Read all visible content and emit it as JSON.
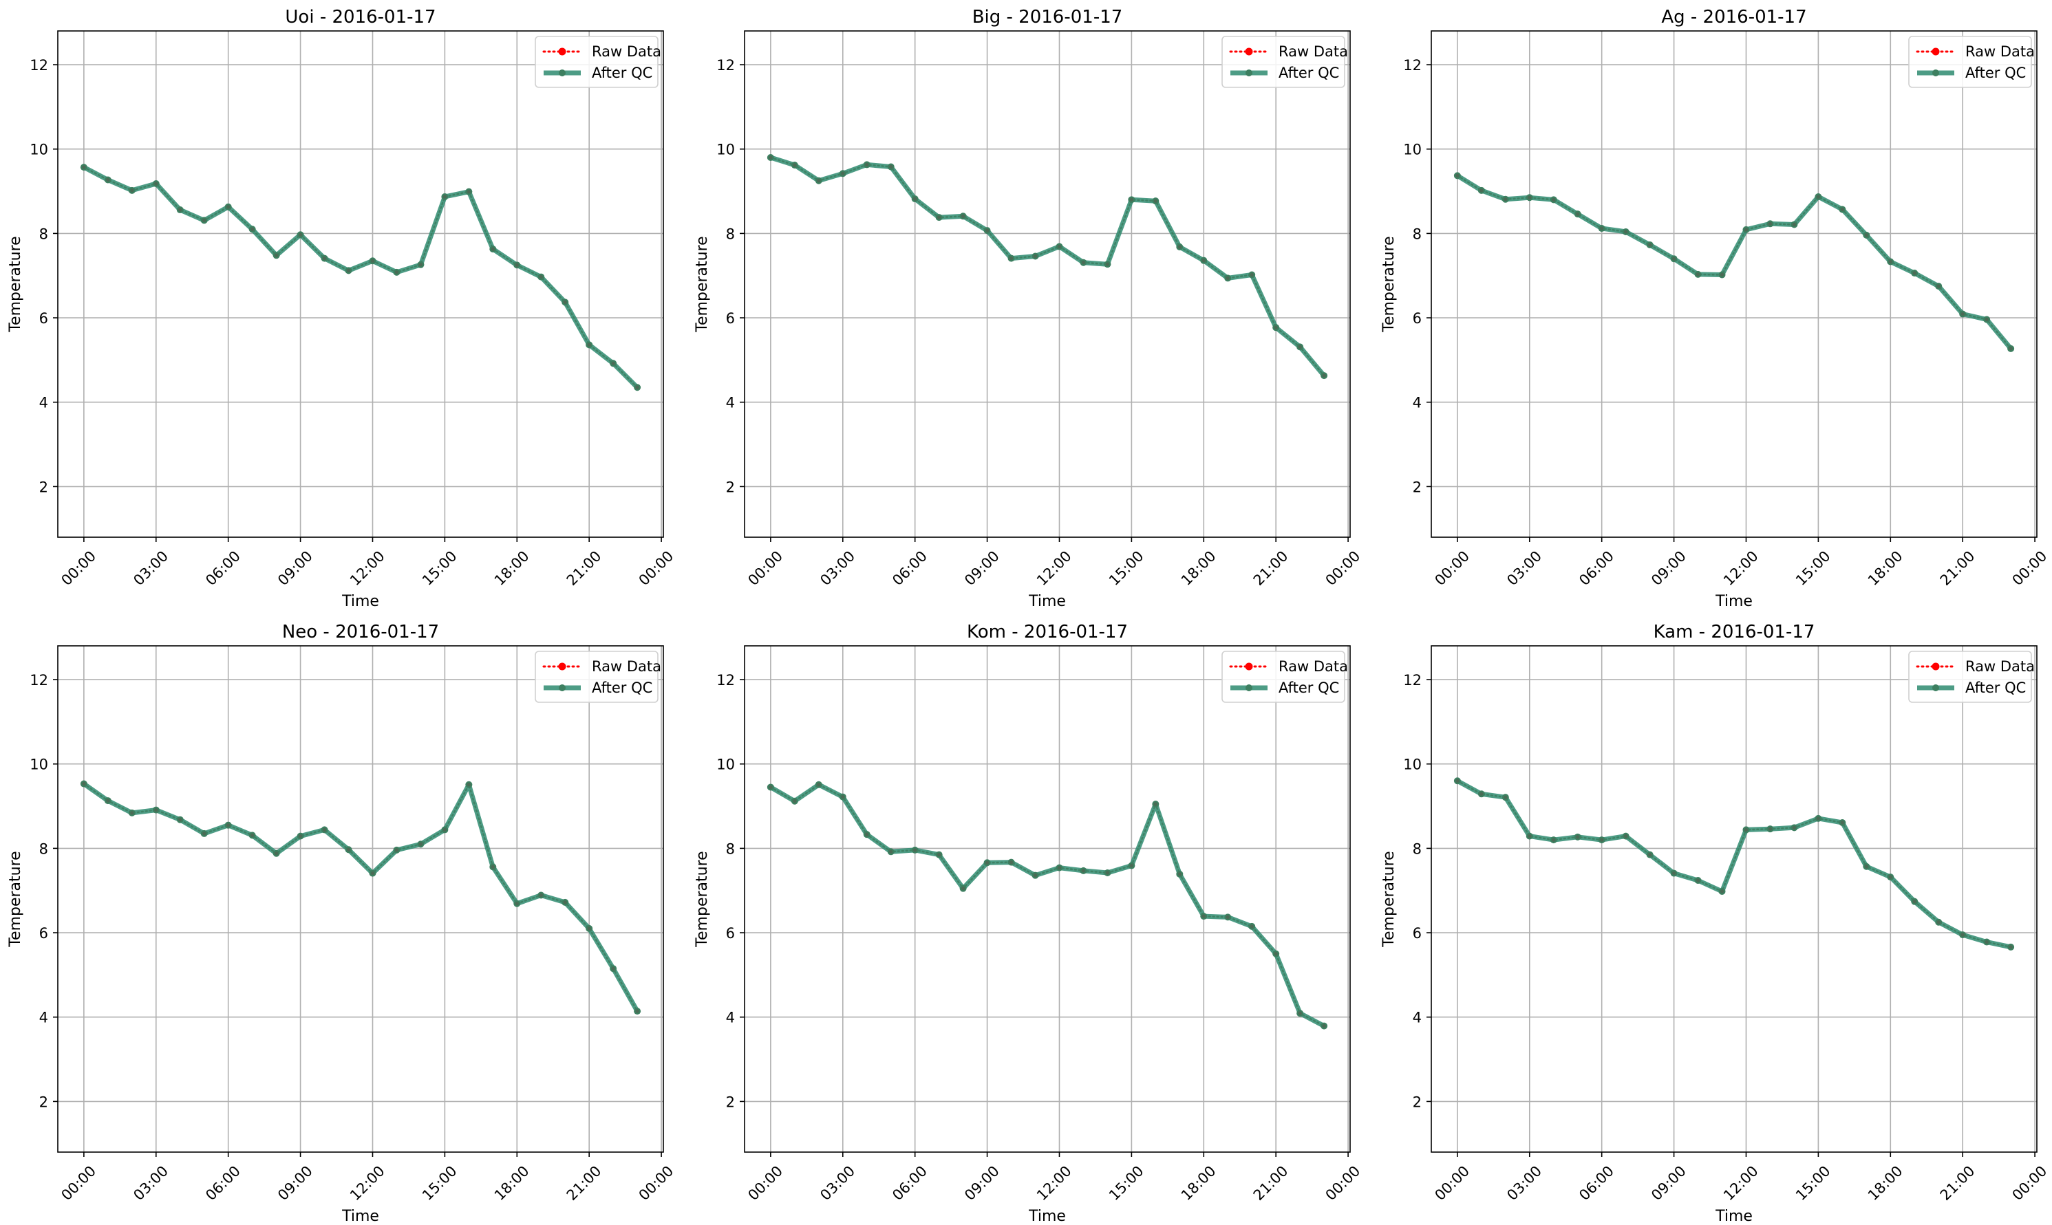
{
  "colors": {
    "raw": "#ff0000",
    "qc": "#2e8b70",
    "qc_marker": "#3d7f60",
    "grid": "#b0b0b0",
    "axes": "#000000"
  },
  "chart_data": [
    {
      "type": "line",
      "title": "Uoi - 2016-01-17",
      "xlabel": "Time",
      "ylabel": "Temperature",
      "ylim": [
        0.8,
        12.8
      ],
      "yticks": [
        2,
        4,
        6,
        8,
        10,
        12
      ],
      "x_hours": [
        0,
        1,
        2,
        3,
        4,
        5,
        6,
        7,
        8,
        9,
        10,
        11,
        12,
        13,
        14,
        15,
        16,
        17,
        18,
        19,
        20,
        21,
        22,
        23
      ],
      "xticks": [
        "00:00",
        "03:00",
        "06:00",
        "09:00",
        "12:00",
        "15:00",
        "18:00",
        "21:00",
        "00:00"
      ],
      "xlim": [
        "2016-01-16 22:55",
        "2016-01-18 00:05"
      ],
      "grid": true,
      "legend_position": "upper right",
      "series": [
        {
          "name": "Raw Data",
          "style": "dotted",
          "values": [
            9.57,
            9.27,
            9.02,
            9.18,
            8.56,
            8.31,
            8.63,
            8.1,
            7.48,
            7.97,
            7.41,
            7.12,
            7.35,
            7.08,
            7.26,
            8.87,
            8.99,
            7.63,
            7.25,
            6.97,
            6.37,
            5.36,
            4.92,
            4.35
          ]
        },
        {
          "name": "After QC",
          "style": "solid",
          "values": [
            9.57,
            9.27,
            9.02,
            9.18,
            8.56,
            8.31,
            8.63,
            8.1,
            7.48,
            7.97,
            7.41,
            7.12,
            7.35,
            7.08,
            7.26,
            8.87,
            8.99,
            7.63,
            7.25,
            6.97,
            6.37,
            5.36,
            4.92,
            4.35
          ]
        }
      ]
    },
    {
      "type": "line",
      "title": "Big - 2016-01-17",
      "xlabel": "Time",
      "ylabel": "Temperature",
      "ylim": [
        0.8,
        12.8
      ],
      "yticks": [
        2,
        4,
        6,
        8,
        10,
        12
      ],
      "x_hours": [
        0,
        1,
        2,
        3,
        4,
        5,
        6,
        7,
        8,
        9,
        10,
        11,
        12,
        13,
        14,
        15,
        16,
        17,
        18,
        19,
        20,
        21,
        22,
        23
      ],
      "xticks": [
        "00:00",
        "03:00",
        "06:00",
        "09:00",
        "12:00",
        "15:00",
        "18:00",
        "21:00",
        "00:00"
      ],
      "xlim": [
        "2016-01-16 22:55",
        "2016-01-18 00:05"
      ],
      "grid": true,
      "legend_position": "upper right",
      "series": [
        {
          "name": "Raw Data",
          "style": "dotted",
          "values": [
            9.8,
            9.62,
            9.25,
            9.42,
            9.63,
            9.58,
            8.82,
            8.38,
            8.41,
            8.07,
            7.41,
            7.46,
            7.69,
            7.31,
            7.27,
            8.8,
            8.77,
            7.68,
            7.36,
            6.94,
            7.02,
            5.77,
            5.31,
            4.63
          ]
        },
        {
          "name": "After QC",
          "style": "solid",
          "values": [
            9.8,
            9.62,
            9.25,
            9.42,
            9.63,
            9.58,
            8.82,
            8.38,
            8.41,
            8.07,
            7.41,
            7.46,
            7.69,
            7.31,
            7.27,
            8.8,
            8.77,
            7.68,
            7.36,
            6.94,
            7.02,
            5.77,
            5.31,
            4.63
          ]
        }
      ]
    },
    {
      "type": "line",
      "title": "Ag - 2016-01-17",
      "xlabel": "Time",
      "ylabel": "Temperature",
      "ylim": [
        0.8,
        12.8
      ],
      "yticks": [
        2,
        4,
        6,
        8,
        10,
        12
      ],
      "x_hours": [
        0,
        1,
        2,
        3,
        4,
        5,
        6,
        7,
        8,
        9,
        10,
        11,
        12,
        13,
        14,
        15,
        16,
        17,
        18,
        19,
        20,
        21,
        22,
        23
      ],
      "xticks": [
        "00:00",
        "03:00",
        "06:00",
        "09:00",
        "12:00",
        "15:00",
        "18:00",
        "21:00",
        "00:00"
      ],
      "xlim": [
        "2016-01-16 22:55",
        "2016-01-18 00:05"
      ],
      "grid": true,
      "legend_position": "upper right",
      "series": [
        {
          "name": "Raw Data",
          "style": "dotted",
          "values": [
            9.37,
            9.02,
            8.81,
            8.85,
            8.8,
            8.46,
            8.12,
            8.04,
            7.73,
            7.4,
            7.03,
            7.02,
            8.09,
            8.23,
            8.21,
            8.87,
            8.57,
            7.96,
            7.33,
            7.06,
            6.75,
            6.09,
            5.96,
            5.27
          ]
        },
        {
          "name": "After QC",
          "style": "solid",
          "values": [
            9.37,
            9.02,
            8.81,
            8.85,
            8.8,
            8.46,
            8.12,
            8.04,
            7.73,
            7.4,
            7.03,
            7.02,
            8.09,
            8.23,
            8.21,
            8.87,
            8.57,
            7.96,
            7.33,
            7.06,
            6.75,
            6.09,
            5.96,
            5.27
          ]
        }
      ]
    },
    {
      "type": "line",
      "title": "Neo - 2016-01-17",
      "xlabel": "Time",
      "ylabel": "Temperature",
      "ylim": [
        0.8,
        12.8
      ],
      "yticks": [
        2,
        4,
        6,
        8,
        10,
        12
      ],
      "x_hours": [
        0,
        1,
        2,
        3,
        4,
        5,
        6,
        7,
        8,
        9,
        10,
        11,
        12,
        13,
        14,
        15,
        16,
        17,
        18,
        19,
        20,
        21,
        22,
        23
      ],
      "xticks": [
        "00:00",
        "03:00",
        "06:00",
        "09:00",
        "12:00",
        "15:00",
        "18:00",
        "21:00",
        "00:00"
      ],
      "xlim": [
        "2016-01-16 22:55",
        "2016-01-18 00:05"
      ],
      "grid": true,
      "legend_position": "upper right",
      "series": [
        {
          "name": "Raw Data",
          "style": "dotted",
          "values": [
            9.53,
            9.13,
            8.84,
            8.91,
            8.68,
            8.35,
            8.55,
            8.31,
            7.88,
            8.29,
            8.44,
            7.97,
            7.41,
            7.96,
            8.1,
            8.44,
            9.51,
            7.56,
            6.69,
            6.89,
            6.72,
            6.1,
            5.15,
            4.14
          ]
        },
        {
          "name": "After QC",
          "style": "solid",
          "values": [
            9.53,
            9.13,
            8.84,
            8.91,
            8.68,
            8.35,
            8.55,
            8.31,
            7.88,
            8.29,
            8.44,
            7.97,
            7.41,
            7.96,
            8.1,
            8.44,
            9.51,
            7.56,
            6.69,
            6.89,
            6.72,
            6.1,
            5.15,
            4.14
          ]
        }
      ]
    },
    {
      "type": "line",
      "title": "Kom - 2016-01-17",
      "xlabel": "Time",
      "ylabel": "Temperature",
      "ylim": [
        0.8,
        12.8
      ],
      "yticks": [
        2,
        4,
        6,
        8,
        10,
        12
      ],
      "x_hours": [
        0,
        1,
        2,
        3,
        4,
        5,
        6,
        7,
        8,
        9,
        10,
        11,
        12,
        13,
        14,
        15,
        16,
        17,
        18,
        19,
        20,
        21,
        22,
        23
      ],
      "xticks": [
        "00:00",
        "03:00",
        "06:00",
        "09:00",
        "12:00",
        "15:00",
        "18:00",
        "21:00",
        "00:00"
      ],
      "xlim": [
        "2016-01-16 22:55",
        "2016-01-18 00:05"
      ],
      "grid": true,
      "legend_position": "upper right",
      "series": [
        {
          "name": "Raw Data",
          "style": "dotted",
          "values": [
            9.45,
            9.12,
            9.51,
            9.22,
            8.33,
            7.92,
            7.96,
            7.85,
            7.05,
            7.66,
            7.67,
            7.36,
            7.54,
            7.47,
            7.42,
            7.59,
            9.05,
            7.39,
            6.39,
            6.37,
            6.15,
            5.5,
            4.09,
            3.79
          ]
        },
        {
          "name": "After QC",
          "style": "solid",
          "values": [
            9.45,
            9.12,
            9.51,
            9.22,
            8.33,
            7.92,
            7.96,
            7.85,
            7.05,
            7.66,
            7.67,
            7.36,
            7.54,
            7.47,
            7.42,
            7.59,
            9.05,
            7.39,
            6.39,
            6.37,
            6.15,
            5.5,
            4.09,
            3.79
          ]
        }
      ]
    },
    {
      "type": "line",
      "title": "Kam - 2016-01-17",
      "xlabel": "Time",
      "ylabel": "Temperature",
      "ylim": [
        0.8,
        12.8
      ],
      "yticks": [
        2,
        4,
        6,
        8,
        10,
        12
      ],
      "x_hours": [
        0,
        1,
        2,
        3,
        4,
        5,
        6,
        7,
        8,
        9,
        10,
        11,
        12,
        13,
        14,
        15,
        16,
        17,
        18,
        19,
        20,
        21,
        22,
        23
      ],
      "xticks": [
        "00:00",
        "03:00",
        "06:00",
        "09:00",
        "12:00",
        "15:00",
        "18:00",
        "21:00",
        "00:00"
      ],
      "xlim": [
        "2016-01-16 22:55",
        "2016-01-18 00:05"
      ],
      "grid": true,
      "legend_position": "upper right",
      "series": [
        {
          "name": "Raw Data",
          "style": "dotted",
          "values": [
            9.6,
            9.29,
            9.21,
            8.29,
            8.2,
            8.27,
            8.2,
            8.29,
            7.85,
            7.41,
            7.24,
            6.98,
            8.44,
            8.46,
            8.49,
            8.71,
            8.61,
            7.57,
            7.32,
            6.74,
            6.25,
            5.95,
            5.78,
            5.66
          ]
        },
        {
          "name": "After QC",
          "style": "solid",
          "values": [
            9.6,
            9.29,
            9.21,
            8.29,
            8.2,
            8.27,
            8.2,
            8.29,
            7.85,
            7.41,
            7.24,
            6.98,
            8.44,
            8.46,
            8.49,
            8.71,
            8.61,
            7.57,
            7.32,
            6.74,
            6.25,
            5.95,
            5.78,
            5.66
          ]
        }
      ]
    }
  ]
}
